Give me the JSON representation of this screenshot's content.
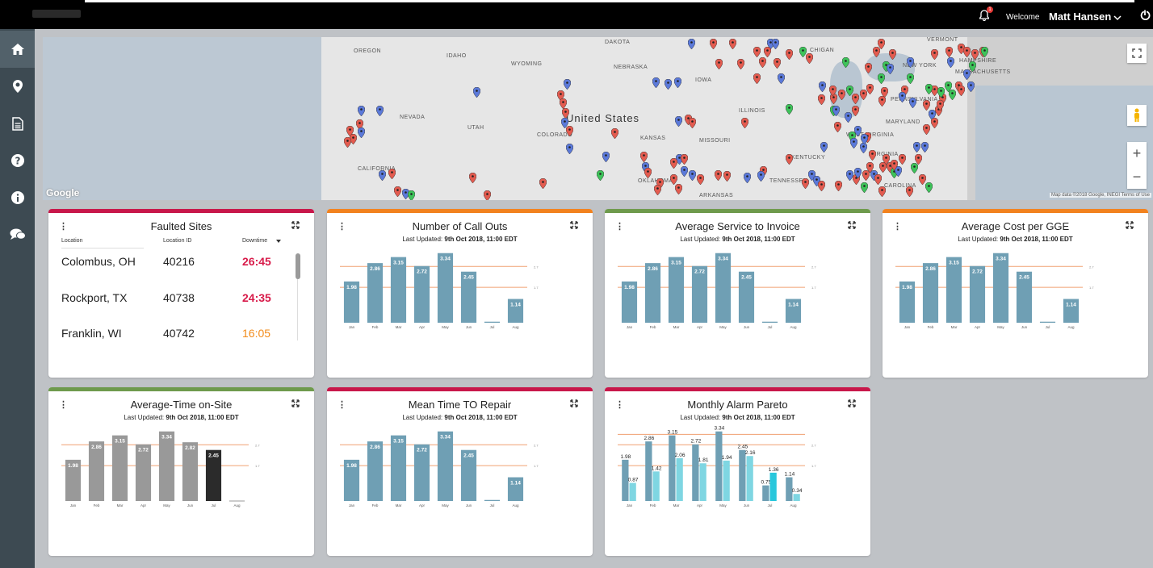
{
  "header": {
    "welcome": "Welcome",
    "user_name": "Matt Hansen",
    "notification_count": "1"
  },
  "sidebar": {
    "items": [
      {
        "name": "home",
        "icon": "home-icon",
        "active": true
      },
      {
        "name": "locations",
        "icon": "map-pin-icon"
      },
      {
        "name": "reports",
        "icon": "document-icon"
      },
      {
        "name": "help",
        "icon": "question-icon"
      },
      {
        "name": "info",
        "icon": "info-icon"
      },
      {
        "name": "chat",
        "icon": "chat-icon"
      }
    ]
  },
  "map": {
    "country_label": "United States",
    "labels": [
      "OREGON",
      "IDAHO",
      "WYOMING",
      "DAKOTA",
      "NEBRASKA",
      "IOWA",
      "NEVADA",
      "UTAH",
      "COLORADO",
      "KANSAS",
      "MISSOURI",
      "ILLINOIS",
      "KENTUCKY",
      "TENNESSEE",
      "ARKANSAS",
      "CALIFORNIA",
      "WEST VIRGINIA",
      "VIRGINIA",
      "MARYLAND",
      "PENNSYLVANIA",
      "NEW YORK",
      "VERMONT",
      "HAMPSHIRE",
      "MASSACHUSETTS",
      "CHIGAN",
      "OKLAHOMA",
      "CAROLINA"
    ],
    "google_label": "Google",
    "attribution": "Map data ©2018 Google, INEGI   Terms of Use",
    "pin_colors": {
      "red": "#e35b4f",
      "blue": "#5b79d9",
      "green": "#3ec35a"
    }
  },
  "faulted_sites": {
    "title": "Faulted Sites",
    "columns": [
      "Location",
      "Location ID",
      "Downtime"
    ],
    "rows": [
      {
        "location": "Colombus, OH",
        "id": "40216",
        "downtime": "26:45",
        "color": "#d81b4a"
      },
      {
        "location": "Rockport, TX",
        "id": "40738",
        "downtime": "24:35",
        "color": "#d81b4a"
      },
      {
        "location": "Franklin, WI",
        "id": "40742",
        "downtime": "16:05",
        "color": "#f28b1a"
      }
    ]
  },
  "colors": {
    "red": "#c8174a",
    "orange": "#f2821e",
    "green": "#6e9a4c",
    "bar_blue": "#6f9fb4",
    "bar_gray": "#999999",
    "bar_dark": "#2b2b2b",
    "bar_cyan": "#7fd6e2",
    "bar_cyan_hl": "#29c7dc",
    "ref_line": "#f0a070"
  },
  "cards": [
    {
      "id": "call-outs",
      "title": "Number of Call Outs",
      "subtitle_prefix": "Last Updated: ",
      "subtitle_date": "9th Oct 2018, 11:00 EDT",
      "accent": "orange"
    },
    {
      "id": "service-invoice",
      "title": "Average Service to Invoice",
      "subtitle_prefix": "Last Updated: ",
      "subtitle_date": "9th Oct 2018, 11:00 EDT",
      "accent": "green"
    },
    {
      "id": "cost-gge",
      "title": "Average Cost per GGE",
      "subtitle_prefix": "Last Updated: ",
      "subtitle_date": "9th Oct 2018, 11:00 EDT",
      "accent": "orange"
    },
    {
      "id": "time-on-site",
      "title": "Average-Time on-Site",
      "subtitle_prefix": "Last Updated: ",
      "subtitle_date": "9th Oct 2018, 11:00 EDT",
      "accent": "green"
    },
    {
      "id": "mttr",
      "title": "Mean Time TO Repair",
      "subtitle_prefix": "Last Updated: ",
      "subtitle_date": "9th Oct 2018, 11:00 EDT",
      "accent": "red"
    },
    {
      "id": "alarm-pareto",
      "title": "Monthly Alarm Pareto",
      "subtitle_prefix": "Last Updated: ",
      "subtitle_date": "9th Oct 2018, 11:00 EDT",
      "accent": "red"
    }
  ],
  "chart_data": [
    {
      "chart": "call-outs",
      "type": "bar",
      "categories": [
        "Jan",
        "Feb",
        "Mar",
        "Apr",
        "May",
        "Jun",
        "Jul",
        "Aug"
      ],
      "values": [
        1.98,
        2.86,
        3.15,
        2.72,
        3.34,
        2.45,
        0.05,
        1.14
      ],
      "data_labels": [
        "1.98",
        "2.86",
        "3.15",
        "2.72",
        "3.34",
        "2.45",
        "",
        "1.14"
      ],
      "ref_lines": [
        2.7,
        1.7
      ],
      "ref_labels": [
        "2.7",
        "1.7"
      ],
      "ylim": [
        0,
        3.6
      ]
    },
    {
      "chart": "service-invoice",
      "type": "bar",
      "categories": [
        "Jan",
        "Feb",
        "Mar",
        "Apr",
        "May",
        "Jun",
        "Jul",
        "Aug"
      ],
      "values": [
        1.98,
        2.86,
        3.15,
        2.72,
        3.34,
        2.45,
        0.05,
        1.14
      ],
      "data_labels": [
        "1.98",
        "2.86",
        "3.15",
        "2.72",
        "3.34",
        "2.45",
        "",
        "1.14"
      ],
      "ref_lines": [
        2.7,
        1.7
      ],
      "ref_labels": [
        "2.7",
        "1.7"
      ],
      "ylim": [
        0,
        3.6
      ]
    },
    {
      "chart": "cost-gge",
      "type": "bar",
      "categories": [
        "Jan",
        "Feb",
        "Mar",
        "Apr",
        "May",
        "Jun",
        "Jul",
        "Aug"
      ],
      "values": [
        1.98,
        2.86,
        3.15,
        2.72,
        3.34,
        2.45,
        0.05,
        1.14
      ],
      "data_labels": [
        "1.98",
        "2.86",
        "3.15",
        "2.72",
        "3.34",
        "2.45",
        "",
        "1.14"
      ],
      "ref_lines": [
        2.7,
        1.7
      ],
      "ref_labels": [
        "2.7",
        "1.7"
      ],
      "ylim": [
        0,
        3.6
      ]
    },
    {
      "chart": "time-on-site",
      "type": "bar",
      "categories": [
        "Jan",
        "Feb",
        "Mar",
        "Apr",
        "May",
        "Jun",
        "Jul",
        "Aug"
      ],
      "values": [
        1.98,
        2.86,
        3.15,
        2.72,
        3.34,
        2.82,
        2.45,
        0.02
      ],
      "data_labels": [
        "1.98",
        "2.86",
        "3.15",
        "2.72",
        "3.34",
        "2.82",
        "2.45",
        ""
      ],
      "highlight_index": 6,
      "ref_lines": [
        2.7,
        1.7
      ],
      "ref_labels": [
        "2.7",
        "1.7"
      ],
      "ylim": [
        0,
        3.6
      ]
    },
    {
      "chart": "mttr",
      "type": "bar",
      "categories": [
        "Jan",
        "Feb",
        "Mar",
        "Apr",
        "May",
        "Jun",
        "Jul",
        "Aug"
      ],
      "values": [
        1.98,
        2.86,
        3.15,
        2.72,
        3.34,
        2.45,
        0.05,
        1.14
      ],
      "data_labels": [
        "1.98",
        "2.86",
        "3.15",
        "2.72",
        "3.34",
        "2.45",
        "",
        "1.14"
      ],
      "ref_lines": [
        2.7,
        1.7
      ],
      "ref_labels": [
        "2.7",
        "1.7"
      ],
      "ylim": [
        0,
        3.6
      ]
    },
    {
      "chart": "alarm-pareto",
      "type": "bar",
      "categories": [
        "Jan",
        "Feb",
        "Mar",
        "Apr",
        "May",
        "Jun",
        "Jul",
        "Aug"
      ],
      "series": [
        {
          "values": [
            1.98,
            2.86,
            3.15,
            2.72,
            3.34,
            2.45,
            0.75,
            1.14
          ]
        },
        {
          "values": [
            0.87,
            1.42,
            2.06,
            1.81,
            1.94,
            2.16,
            1.36,
            0.34
          ]
        }
      ],
      "data_labels": [
        [
          "1.98",
          "2.86",
          "3.15",
          "2.72",
          "3.34",
          "2.45",
          "0.75",
          "1.14"
        ],
        [
          "0.87",
          "1.42",
          "2.06",
          "1.81",
          "1.94",
          "2.16",
          "1.36",
          "0.34"
        ]
      ],
      "ref_lines": [
        3.2,
        2.7,
        1.7
      ],
      "ref_labels": [
        "",
        "2.7",
        "1.7"
      ],
      "ylim": [
        0,
        3.6
      ]
    }
  ]
}
